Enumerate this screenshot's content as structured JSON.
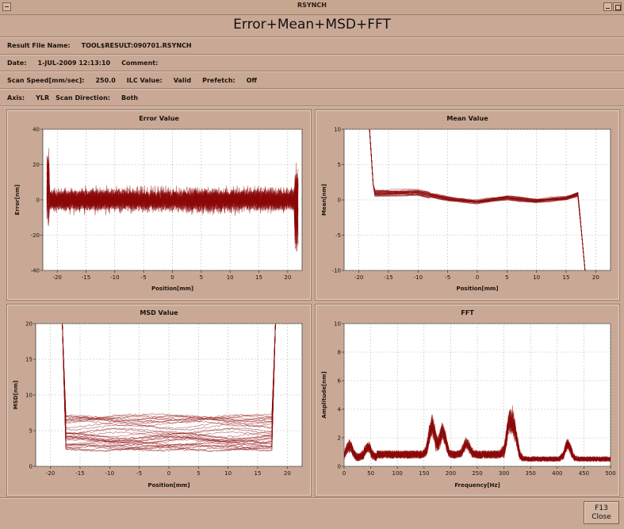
{
  "window": {
    "title": "RSYNCH",
    "heading": "Error+Mean+MSD+FFT"
  },
  "info": {
    "result_file_label": "Result File Name:",
    "result_file_value": "TOOL$RESULT:090701.RSYNCH",
    "date_label": "Date:",
    "date_value": "1-JUL-2009 12:13:10",
    "comment_label": "Comment:",
    "comment_value": "",
    "scan_speed_label": "Scan Speed[mm/sec]:",
    "scan_speed_value": "250.0",
    "ilc_label": "ILC Value:",
    "ilc_value": "Valid",
    "prefetch_label": "Prefetch:",
    "prefetch_value": "Off",
    "axis_label": "Axis:",
    "axis_value": "YLR",
    "scan_dir_label": "Scan Direction:",
    "scan_dir_value": "Both"
  },
  "close_button": {
    "key": "F13",
    "label": "Close"
  },
  "colors": {
    "series": "#8c0a0a",
    "background": "#c9a995",
    "plot": "#ffffff"
  },
  "chart_data": [
    {
      "id": "error",
      "type": "line",
      "title": "Error Value",
      "xlabel": "Position[mm]",
      "ylabel": "Error[nm]",
      "xlim": [
        -22.5,
        22.5
      ],
      "ylim": [
        -40,
        40
      ],
      "xticks": [
        -20,
        -15,
        -10,
        -5,
        0,
        5,
        10,
        15,
        20
      ],
      "yticks": [
        -40,
        -20,
        0,
        20,
        40
      ],
      "series_count": 40,
      "x_range": [
        -21.8,
        21.8
      ],
      "center": 0,
      "noise_amplitude": 9,
      "edge_spike": 38,
      "grid": true
    },
    {
      "id": "mean",
      "type": "line",
      "title": "Mean Value",
      "xlabel": "Position[mm]",
      "ylabel": "Mean[nm]",
      "xlim": [
        -22.5,
        22.5
      ],
      "ylim": [
        -10,
        10
      ],
      "xticks": [
        -20,
        -15,
        -10,
        -5,
        0,
        5,
        10,
        15,
        20
      ],
      "yticks": [
        -10,
        -5,
        0,
        5,
        10
      ],
      "series_count": 30,
      "x_range": [
        -18.2,
        18.2
      ],
      "profile": [
        [
          -18.2,
          10
        ],
        [
          -17.5,
          1.0
        ],
        [
          -12,
          1.0
        ],
        [
          -10,
          1.0
        ],
        [
          -5,
          0.2
        ],
        [
          0,
          -0.3
        ],
        [
          5,
          0.3
        ],
        [
          10,
          -0.1
        ],
        [
          15,
          0.2
        ],
        [
          17,
          0.8
        ],
        [
          18.2,
          -10
        ]
      ],
      "grid": true
    },
    {
      "id": "msd",
      "type": "line",
      "title": "MSD Value",
      "xlabel": "Position[mm]",
      "ylabel": "MSD[nm]",
      "xlim": [
        -22.5,
        22.5
      ],
      "ylim": [
        0,
        20
      ],
      "xticks": [
        -20,
        -15,
        -10,
        -5,
        0,
        5,
        10,
        15,
        20
      ],
      "yticks": [
        0,
        5,
        10,
        15,
        20
      ],
      "series_count": 35,
      "x_range": [
        -18,
        18
      ],
      "band": [
        2.5,
        8
      ],
      "grid": true
    },
    {
      "id": "fft",
      "type": "line",
      "title": "FFT",
      "xlabel": "Frequency[Hz]",
      "ylabel": "Amplitude[nm]",
      "xlim": [
        0,
        500
      ],
      "ylim": [
        0,
        10
      ],
      "xticks": [
        0,
        50,
        100,
        150,
        200,
        250,
        300,
        350,
        400,
        450,
        500
      ],
      "yticks": [
        0,
        2,
        4,
        6,
        8,
        10
      ],
      "series_count": 30,
      "peaks": [
        [
          10,
          1.0
        ],
        [
          45,
          0.9
        ],
        [
          165,
          2.5
        ],
        [
          185,
          2.0
        ],
        [
          230,
          1.0
        ],
        [
          310,
          2.8
        ],
        [
          320,
          2.0
        ],
        [
          420,
          1.3
        ]
      ],
      "grid": true
    }
  ]
}
